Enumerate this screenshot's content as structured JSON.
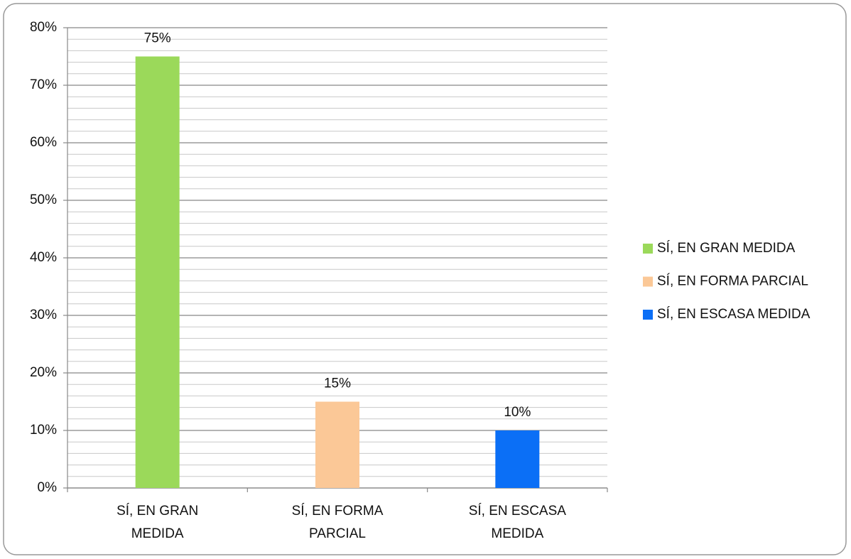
{
  "chart_data": {
    "type": "bar",
    "categories": [
      "SÍ, EN GRAN MEDIDA",
      "SÍ, EN FORMA PARCIAL",
      "SÍ, EN ESCASA MEDIDA"
    ],
    "values": [
      75,
      15,
      10
    ],
    "value_labels": [
      "75%",
      "15%",
      "10%"
    ],
    "colors": [
      "#9bd95a",
      "#fbc897",
      "#0b6ff6"
    ],
    "ylim": [
      0,
      80
    ],
    "yticks": [
      {
        "value": 0,
        "label": "0%"
      },
      {
        "value": 10,
        "label": "10%"
      },
      {
        "value": 20,
        "label": "20%"
      },
      {
        "value": 30,
        "label": "30%"
      },
      {
        "value": 40,
        "label": "40%"
      },
      {
        "value": 50,
        "label": "50%"
      },
      {
        "value": 60,
        "label": "60%"
      },
      {
        "value": 70,
        "label": "70%"
      },
      {
        "value": 80,
        "label": "80%"
      }
    ],
    "minor_yticks": [
      2,
      4,
      6,
      8,
      12,
      14,
      16,
      18,
      22,
      24,
      26,
      28,
      32,
      34,
      36,
      38,
      42,
      44,
      46,
      48,
      52,
      54,
      56,
      58,
      62,
      64,
      66,
      68,
      72,
      74,
      76,
      78
    ],
    "grid": true,
    "legend": "right"
  }
}
